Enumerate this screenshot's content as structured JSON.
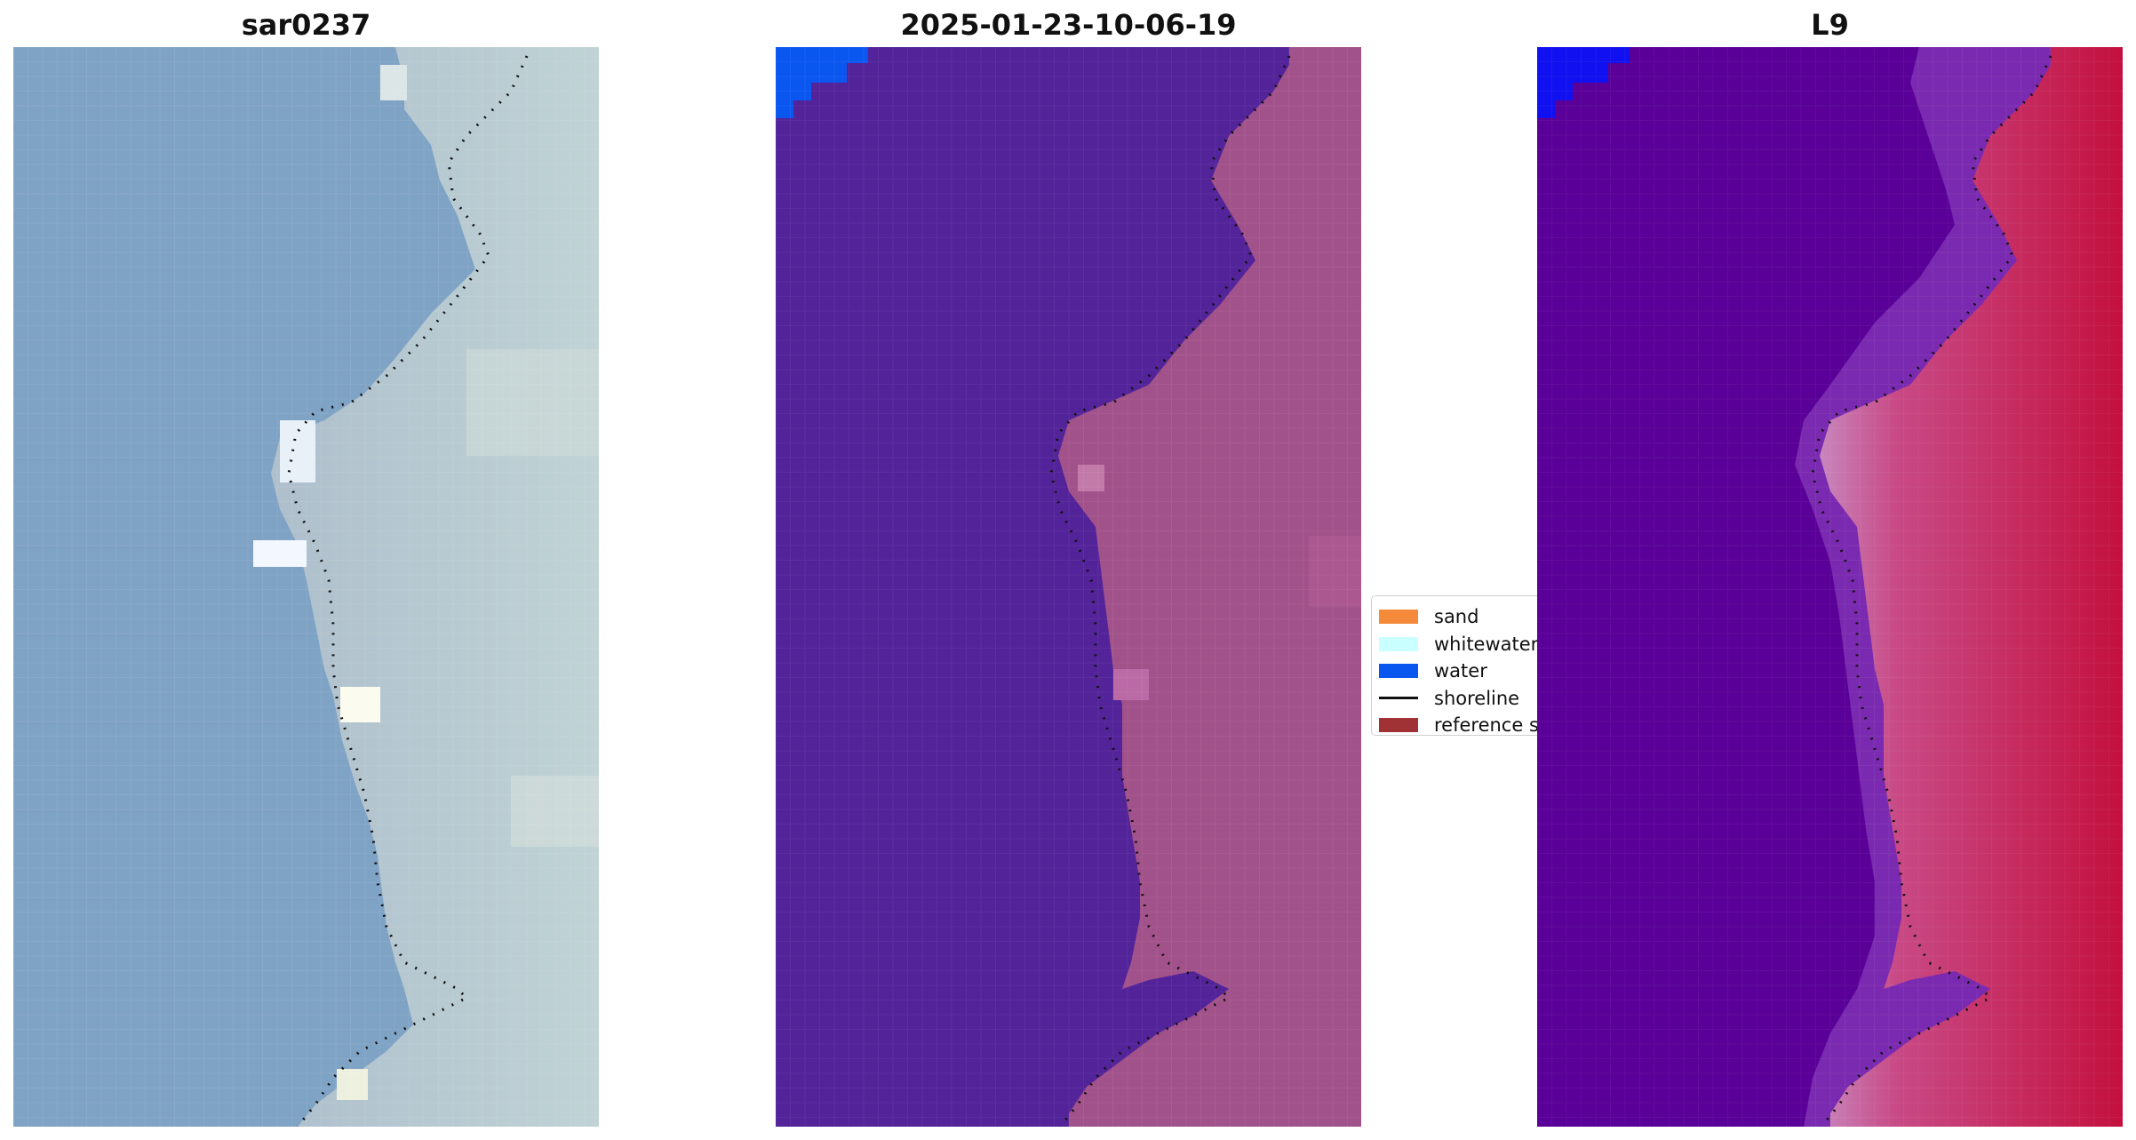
{
  "panels": [
    {
      "title": "sar0237",
      "image": "true-color-satellite-image"
    },
    {
      "title": "2025-01-23-10-06-19",
      "image": "classified-image"
    },
    {
      "title": "L9",
      "image": "index-image"
    }
  ],
  "legend": {
    "items": [
      {
        "label": "sand",
        "color": "#f58a3a",
        "kind": "patch"
      },
      {
        "label": "whitewater",
        "color": "#c9ffff",
        "kind": "patch"
      },
      {
        "label": "water",
        "color": "#0a57f0",
        "kind": "patch"
      },
      {
        "label": "shoreline",
        "color": "#111111",
        "kind": "line"
      },
      {
        "label": "reference shoreline",
        "color": "#a03236",
        "kind": "patch"
      }
    ]
  },
  "colors": {
    "true_color_water": "#7fa3c5",
    "true_color_land": "#b7cbd2",
    "class_water_bg": "#53239a",
    "class_land": "#a2528a",
    "class_water": "#0a57f0",
    "index_water": "#5a0098",
    "index_land": "#c01858",
    "index_blue": "#1010f0"
  }
}
